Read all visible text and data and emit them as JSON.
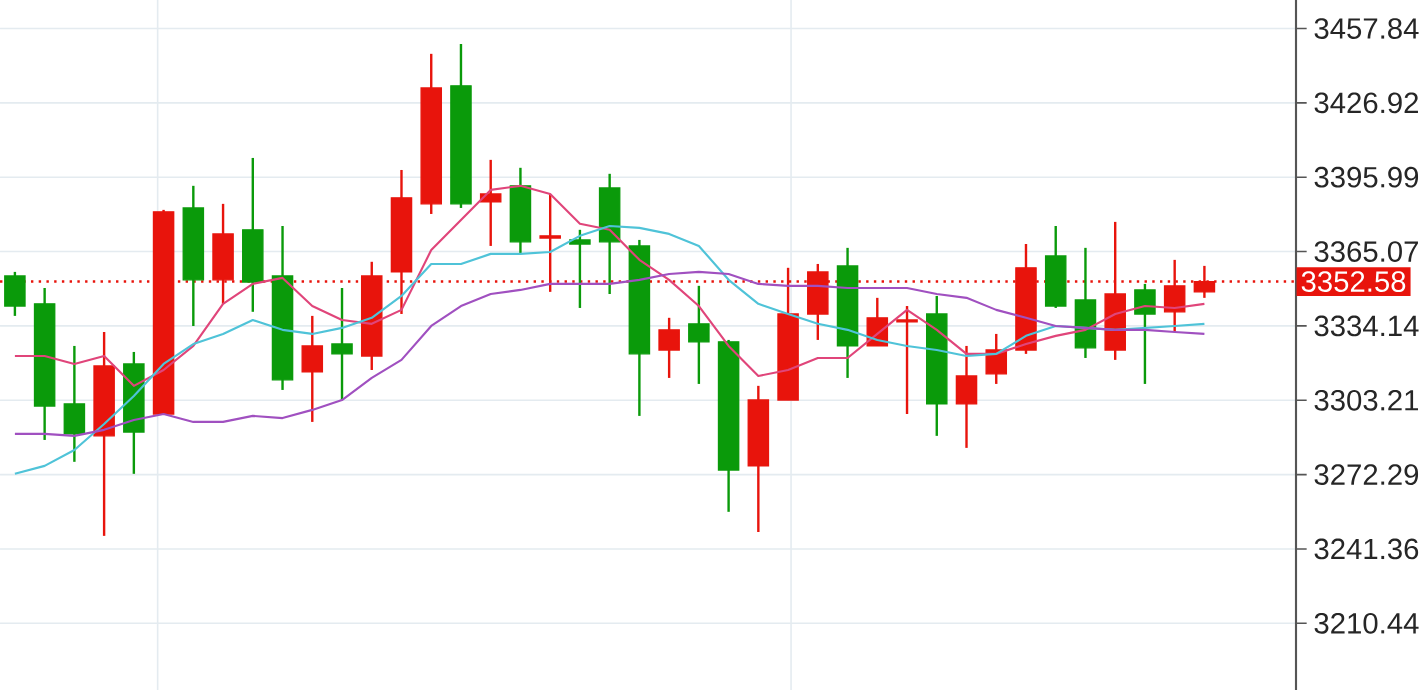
{
  "chart_data": {
    "type": "candlestick",
    "categories": [
      null,
      null,
      null,
      null,
      null,
      null,
      null,
      null,
      null,
      null,
      null,
      null,
      null,
      null,
      null,
      null,
      null,
      null,
      null,
      null,
      null,
      null,
      null,
      null,
      null,
      null,
      null,
      null,
      null,
      null,
      null,
      null,
      null,
      null,
      null,
      null,
      null,
      null,
      null,
      null,
      null
    ],
    "ohlc": [
      [
        3354.9,
        3356.6,
        3338.3,
        3342.4
      ],
      [
        3343.3,
        3349.9,
        3286.7,
        3300.8
      ],
      [
        3301.7,
        3325.8,
        3277.6,
        3289.2
      ],
      [
        3288.4,
        3331.6,
        3246.8,
        3317.5
      ],
      [
        3318.3,
        3323.3,
        3272.6,
        3290.0
      ],
      [
        3297.5,
        3382.4,
        3297.5,
        3381.6
      ],
      [
        3383.2,
        3392.4,
        3334.1,
        3353.3
      ],
      [
        3353.3,
        3384.9,
        3343.3,
        3372.4
      ],
      [
        3374.1,
        3404.0,
        3340.0,
        3352.4
      ],
      [
        3354.9,
        3375.7,
        3307.5,
        3311.7
      ],
      [
        3315.0,
        3338.3,
        3294.2,
        3325.8
      ],
      [
        3326.6,
        3349.9,
        3303.3,
        3322.5
      ],
      [
        3321.6,
        3360.8,
        3315.8,
        3354.9
      ],
      [
        3356.6,
        3399.0,
        3339.1,
        3387.4
      ],
      [
        3384.9,
        3447.3,
        3380.7,
        3433.1
      ],
      [
        3434.0,
        3451.4,
        3383.2,
        3384.9
      ],
      [
        3385.7,
        3403.2,
        3367.4,
        3389.0
      ],
      [
        3392.4,
        3399.9,
        3364.1,
        3369.1
      ],
      [
        3370.7,
        3389.0,
        3348.3,
        3371.6
      ],
      [
        3369.9,
        3374.1,
        3341.6,
        3368.2
      ],
      [
        3391.5,
        3397.4,
        3347.4,
        3369.1
      ],
      [
        3367.4,
        3369.9,
        3296.7,
        3322.5
      ],
      [
        3324.1,
        3337.5,
        3312.5,
        3332.5
      ],
      [
        3335.0,
        3350.8,
        3310.0,
        3327.5
      ],
      [
        3327.5,
        3328.3,
        3256.8,
        3274.2
      ],
      [
        3275.9,
        3309.2,
        3248.4,
        3303.3
      ],
      [
        3303.3,
        3358.3,
        3303.3,
        3339.1
      ],
      [
        3339.1,
        3359.9,
        3328.3,
        3356.6
      ],
      [
        3359.1,
        3366.6,
        3312.5,
        3325.8
      ],
      [
        3325.8,
        3345.8,
        3325.8,
        3337.5
      ],
      [
        3335.8,
        3342.4,
        3297.5,
        3336.6
      ],
      [
        3339.1,
        3346.6,
        3288.4,
        3301.7
      ],
      [
        3301.7,
        3325.8,
        3283.4,
        3313.3
      ],
      [
        3314.2,
        3330.8,
        3310.0,
        3324.1
      ],
      [
        3324.1,
        3368.2,
        3322.5,
        3358.3
      ],
      [
        3363.2,
        3375.7,
        3341.6,
        3342.4
      ],
      [
        3344.9,
        3366.6,
        3320.8,
        3325.0
      ],
      [
        3324.1,
        3377.4,
        3320.0,
        3347.4
      ],
      [
        3349.1,
        3351.6,
        3310.0,
        3339.1
      ],
      [
        3340.0,
        3361.6,
        3331.6,
        3350.8
      ],
      [
        3348.3,
        3359.1,
        3345.8,
        3352.58
      ]
    ],
    "colors": [
      "#0a9a0a",
      "#0a9a0a",
      "#0a9a0a",
      "#e8140c",
      "#0a9a0a",
      "#e8140c",
      "#0a9a0a",
      "#e8140c",
      "#0a9a0a",
      "#0a9a0a",
      "#e8140c",
      "#0a9a0a",
      "#e8140c",
      "#e8140c",
      "#e8140c",
      "#0a9a0a",
      "#e8140c",
      "#0a9a0a",
      "#e8140c",
      "#0a9a0a",
      "#0a9a0a",
      "#0a9a0a",
      "#e8140c",
      "#0a9a0a",
      "#0a9a0a",
      "#e8140c",
      "#e8140c",
      "#e8140c",
      "#0a9a0a",
      "#e8140c",
      "#e8140c",
      "#0a9a0a",
      "#e8140c",
      "#e8140c",
      "#e8140c",
      "#0a9a0a",
      "#0a9a0a",
      "#e8140c",
      "#0a9a0a",
      "#e8140c",
      "#e8140c"
    ],
    "series": [
      {
        "type": "line",
        "color": "#e0457a",
        "values": [
          3321.6,
          3321.6,
          3318.3,
          3321.6,
          3309.2,
          3315.8,
          3325.8,
          3343.3,
          3351.6,
          3354.1,
          3342.4,
          3336.6,
          3335.0,
          3340.8,
          3365.7,
          3378.2,
          3390.7,
          3392.4,
          3389.0,
          3376.6,
          3374.1,
          3361.6,
          3353.3,
          3342.4,
          3325.8,
          3313.3,
          3315.8,
          3320.8,
          3320.8,
          3330.8,
          3340.8,
          3332.5,
          3322.5,
          3322.5,
          3326.6,
          3330.0,
          3332.5,
          3339.1,
          3342.4,
          3341.6,
          3343.3
        ]
      },
      {
        "type": "line",
        "color": "#4fc3d8",
        "values": [
          3272.6,
          3275.9,
          3282.5,
          3293.3,
          3305.0,
          3318.3,
          3326.6,
          3330.8,
          3336.6,
          3332.5,
          3330.8,
          3333.3,
          3337.5,
          3346.6,
          3359.9,
          3359.9,
          3364.1,
          3364.1,
          3364.9,
          3371.6,
          3375.7,
          3374.9,
          3372.4,
          3367.4,
          3353.3,
          3343.3,
          3339.1,
          3335.0,
          3332.5,
          3328.3,
          3325.8,
          3324.1,
          3321.6,
          3322.5,
          3330.0,
          3334.1,
          3333.3,
          3332.5,
          3333.3,
          3334.1,
          3335.0
        ]
      },
      {
        "type": "line",
        "color": "#a050c0",
        "values": [
          3289.2,
          3289.2,
          3288.4,
          3290.9,
          3295.0,
          3297.5,
          3294.2,
          3294.2,
          3296.7,
          3295.8,
          3299.2,
          3303.3,
          3312.5,
          3320.0,
          3334.1,
          3342.4,
          3347.4,
          3349.1,
          3351.6,
          3351.6,
          3351.6,
          3353.3,
          3355.7,
          3356.6,
          3355.7,
          3351.6,
          3350.8,
          3350.8,
          3349.9,
          3349.9,
          3349.9,
          3347.4,
          3345.8,
          3340.8,
          3337.5,
          3334.1,
          3333.3,
          3332.5,
          3332.5,
          3331.6,
          3330.8
        ]
      }
    ],
    "ylim": [
      3182.7,
      3469.7
    ],
    "yticks": [
      3210.44,
      3241.36,
      3272.29,
      3303.21,
      3334.14,
      3365.07,
      3395.99,
      3426.92,
      3457.84
    ],
    "grid": "y",
    "ref_lines": [
      {
        "axis": "y",
        "value": 3352.58,
        "label": "3352.58",
        "color": "#e8140c",
        "line_style": "dotted"
      }
    ]
  }
}
